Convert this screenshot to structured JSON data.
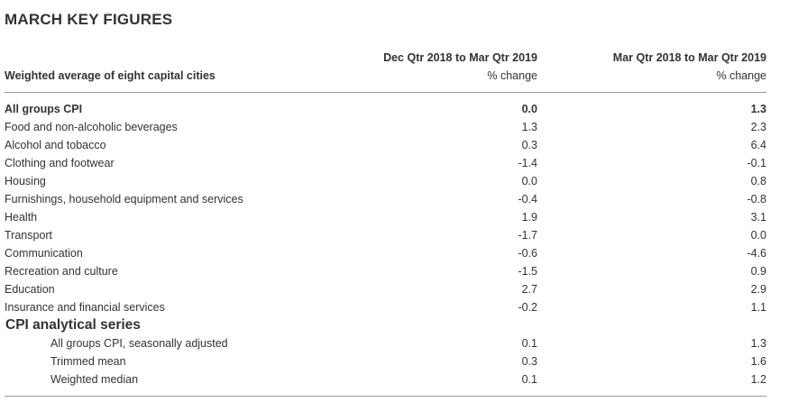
{
  "title": "MARCH KEY FIGURES",
  "row_header": "Weighted average of eight capital cities",
  "columns": [
    {
      "period": "Dec Qtr 2018 to Mar Qtr 2019",
      "unit": "% change"
    },
    {
      "period": "Mar Qtr 2018 to Mar Qtr 2019",
      "unit": "% change"
    }
  ],
  "rows": [
    {
      "label": "All groups CPI",
      "v1": "0.0",
      "v2": "1.3"
    },
    {
      "label": "Food and non-alcoholic beverages",
      "v1": "1.3",
      "v2": "2.3"
    },
    {
      "label": "Alcohol and tobacco",
      "v1": "0.3",
      "v2": "6.4"
    },
    {
      "label": "Clothing and footwear",
      "v1": "-1.4",
      "v2": "-0.1"
    },
    {
      "label": "Housing",
      "v1": "0.0",
      "v2": "0.8"
    },
    {
      "label": "Furnishings, household equipment and services",
      "v1": "-0.4",
      "v2": "-0.8"
    },
    {
      "label": "Health",
      "v1": "1.9",
      "v2": "3.1"
    },
    {
      "label": "Transport",
      "v1": "-1.7",
      "v2": "0.0"
    },
    {
      "label": "Communication",
      "v1": "-0.6",
      "v2": "-4.6"
    },
    {
      "label": "Recreation and culture",
      "v1": "-1.5",
      "v2": "0.9"
    },
    {
      "label": "Education",
      "v1": "2.7",
      "v2": "2.9"
    },
    {
      "label": "Insurance and financial services",
      "v1": "-0.2",
      "v2": "1.1"
    }
  ],
  "analytical": {
    "heading": "CPI analytical series",
    "rows": [
      {
        "label": "All groups CPI, seasonally adjusted",
        "v1": "0.1",
        "v2": "1.3"
      },
      {
        "label": "Trimmed mean",
        "v1": "0.3",
        "v2": "1.6"
      },
      {
        "label": "Weighted median",
        "v1": "0.1",
        "v2": "1.2"
      }
    ]
  }
}
